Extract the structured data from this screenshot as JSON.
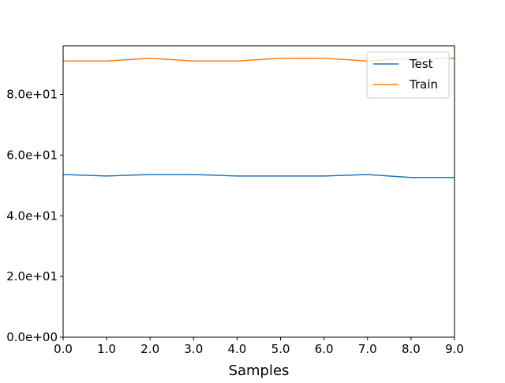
{
  "chart_data": {
    "type": "line",
    "title": "",
    "xlabel": "Samples",
    "ylabel": "",
    "x": [
      0,
      1,
      2,
      3,
      4,
      5,
      6,
      7,
      8,
      9
    ],
    "xlim": [
      0,
      9
    ],
    "ylim": [
      0,
      96
    ],
    "x_ticks": [
      0,
      1,
      2,
      3,
      4,
      5,
      6,
      7,
      8,
      9
    ],
    "x_tick_labels": [
      "0.0",
      "1.0",
      "2.0",
      "3.0",
      "4.0",
      "5.0",
      "6.0",
      "7.0",
      "8.0",
      "9.0"
    ],
    "y_ticks": [
      0,
      20,
      40,
      60,
      80
    ],
    "y_tick_labels": [
      "0.0e+00",
      "2.0e+01",
      "4.0e+01",
      "6.0e+01",
      "8.0e+01"
    ],
    "grid": false,
    "legend_position": "top-right",
    "series": [
      {
        "name": "Test",
        "color": "#1f77b4",
        "values": [
          53.6,
          53.1,
          53.6,
          53.6,
          53.1,
          53.1,
          53.1,
          53.6,
          52.6,
          52.6
        ]
      },
      {
        "name": "Train",
        "color": "#ff7f0e",
        "values": [
          91.0,
          91.0,
          91.9,
          91.0,
          91.0,
          91.9,
          91.9,
          91.0,
          91.9,
          91.9
        ]
      }
    ]
  }
}
